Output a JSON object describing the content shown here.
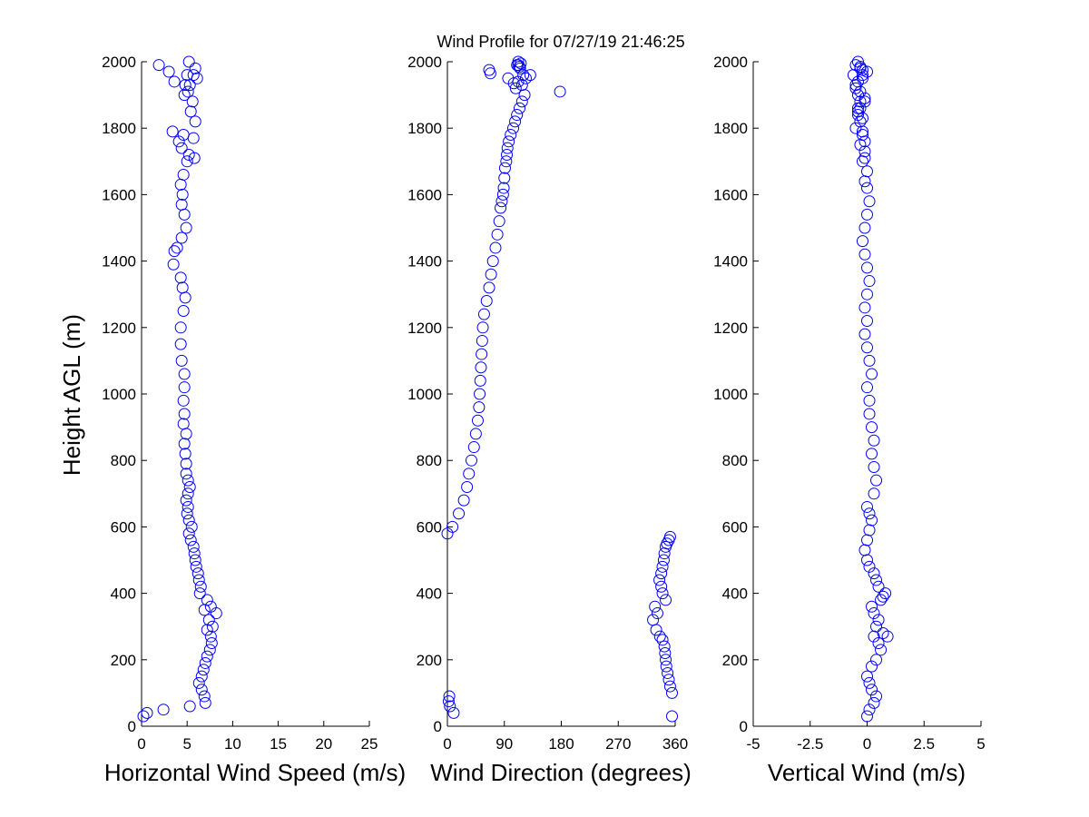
{
  "title": "Wind Profile for  07/27/19 21:46:25",
  "colors": {
    "marker": "#0000ff",
    "axis": "#000000",
    "background": "#ffffff"
  },
  "chart_data": [
    {
      "type": "scatter",
      "xlabel": "Horizontal Wind Speed (m/s)",
      "ylabel": "Height AGL (m)",
      "xlim": [
        0,
        25
      ],
      "ylim": [
        0,
        2000
      ],
      "xticks": [
        "0",
        "5",
        "10",
        "15",
        "20",
        "25"
      ],
      "yticks": [
        "0",
        "200",
        "400",
        "600",
        "800",
        "1000",
        "1200",
        "1400",
        "1600",
        "1800",
        "2000"
      ],
      "grid": false,
      "x": [
        0.2,
        0.6,
        2.4,
        5.3,
        7.0,
        6.9,
        6.6,
        6.3,
        6.6,
        6.8,
        7.0,
        7.2,
        7.5,
        7.7,
        7.6,
        7.8,
        8.2,
        7.4,
        7.2,
        6.9,
        7.6,
        7.2,
        6.4,
        6.5,
        6.3,
        6.2,
        6.0,
        5.9,
        5.8,
        5.7,
        5.4,
        5.2,
        5.5,
        5.2,
        5.0,
        5.1,
        4.9,
        5.1,
        5.3,
        5.1,
        4.9,
        4.9,
        4.8,
        4.7,
        4.9,
        4.6,
        4.7,
        4.6,
        4.7,
        4.7,
        4.4,
        4.3,
        4.3,
        4.6,
        4.8,
        4.5,
        4.3,
        3.5,
        3.6,
        3.9,
        4.4,
        4.9,
        4.7,
        4.4,
        4.5,
        4.3,
        4.6,
        5.0,
        5.2,
        4.4,
        4.1,
        5.8,
        5.7,
        5.9,
        5.4,
        3.4,
        4.6,
        5.6,
        5.1,
        5.3,
        4.7,
        6.1,
        5.7,
        3.0,
        3.6,
        4.8,
        5.0,
        5.9,
        1.9,
        5.2
      ],
      "y": [
        30,
        40,
        50,
        60,
        70,
        90,
        110,
        130,
        150,
        170,
        190,
        210,
        230,
        250,
        270,
        300,
        340,
        320,
        290,
        350,
        360,
        380,
        400,
        420,
        440,
        460,
        480,
        500,
        520,
        540,
        560,
        580,
        600,
        620,
        640,
        660,
        680,
        700,
        720,
        740,
        760,
        790,
        820,
        850,
        880,
        910,
        940,
        980,
        1020,
        1060,
        1100,
        1150,
        1200,
        1250,
        1290,
        1320,
        1350,
        1390,
        1430,
        1440,
        1470,
        1500,
        1540,
        1570,
        1600,
        1630,
        1660,
        1700,
        1720,
        1740,
        1760,
        1710,
        1770,
        1820,
        1850,
        1790,
        1780,
        1880,
        1910,
        1930,
        1900,
        1950,
        1960,
        1970,
        1940,
        1930,
        1960,
        1980,
        1990,
        2000
      ]
    },
    {
      "type": "scatter",
      "xlabel": "Wind Direction (degrees)",
      "ylabel": "",
      "xlim": [
        0,
        360
      ],
      "ylim": [
        0,
        2000
      ],
      "xticks": [
        "0",
        "90",
        "180",
        "270",
        "360"
      ],
      "yticks": [
        "0",
        "200",
        "400",
        "600",
        "800",
        "1000",
        "1200",
        "1400",
        "1600",
        "1800",
        "2000"
      ],
      "grid": false,
      "x": [
        355,
        10,
        4,
        2,
        3,
        355,
        352,
        350,
        348,
        346,
        345,
        344,
        343,
        340,
        336,
        330,
        325,
        332,
        328,
        345,
        340,
        338,
        335,
        338,
        340,
        342,
        343,
        345,
        347,
        350,
        352,
        0,
        8,
        18,
        26,
        31,
        34,
        38,
        42,
        45,
        48,
        50,
        51,
        52,
        53,
        54,
        55,
        56,
        58,
        62,
        66,
        69,
        72,
        76,
        79,
        82,
        84,
        86,
        88,
        89,
        90,
        91,
        93,
        94,
        95,
        97,
        100,
        104,
        107,
        110,
        114,
        118,
        122,
        108,
        112,
        120,
        124,
        131,
        115,
        112,
        110,
        112,
        114,
        116,
        66,
        68,
        96,
        105,
        178,
        118
      ],
      "y": [
        30,
        40,
        60,
        75,
        90,
        100,
        120,
        140,
        160,
        180,
        200,
        220,
        240,
        260,
        270,
        290,
        320,
        340,
        360,
        380,
        400,
        420,
        440,
        460,
        480,
        500,
        520,
        540,
        550,
        560,
        570,
        580,
        600,
        640,
        680,
        720,
        760,
        800,
        840,
        880,
        920,
        960,
        1000,
        1040,
        1080,
        1120,
        1160,
        1200,
        1240,
        1280,
        1320,
        1360,
        1400,
        1440,
        1480,
        1520,
        1560,
        1580,
        1600,
        1620,
        1650,
        1680,
        1700,
        1720,
        1740,
        1760,
        1780,
        1800,
        1820,
        1840,
        1860,
        1880,
        1900,
        1920,
        1940,
        1960,
        1950,
        1960,
        1980,
        1990,
        1990,
        2000,
        1985,
        1995,
        1975,
        1965,
        1950,
        1935,
        1910,
        1930
      ]
    },
    {
      "type": "scatter",
      "xlabel": "Vertical Wind (m/s)",
      "ylabel": "",
      "xlim": [
        -5,
        5
      ],
      "ylim": [
        0,
        2000
      ],
      "xticks": [
        "-5",
        "-2.5",
        "0",
        "2.5",
        "5"
      ],
      "yticks": [
        "0",
        "200",
        "400",
        "600",
        "800",
        "1000",
        "1200",
        "1400",
        "1600",
        "1800",
        "2000"
      ],
      "grid": false,
      "x": [
        0.0,
        0.1,
        0.3,
        0.4,
        0.2,
        0.1,
        0.0,
        0.2,
        0.4,
        0.6,
        0.5,
        0.3,
        0.7,
        0.4,
        0.9,
        0.5,
        0.3,
        0.2,
        0.6,
        0.8,
        0.7,
        0.5,
        0.4,
        0.3,
        0.1,
        0.0,
        -0.1,
        0.0,
        0.1,
        0.2,
        0.1,
        0.0,
        0.3,
        0.4,
        0.3,
        0.2,
        0.3,
        0.2,
        0.1,
        0.1,
        0.0,
        0.2,
        0.1,
        0.0,
        -0.1,
        0.0,
        -0.1,
        0.0,
        0.1,
        0.0,
        -0.1,
        -0.2,
        -0.1,
        0.0,
        0.1,
        0.0,
        -0.1,
        0.0,
        -0.2,
        -0.1,
        -0.1,
        -0.2,
        -0.3,
        -0.4,
        -0.3,
        -0.4,
        -0.5,
        -0.4,
        -0.2,
        -0.3,
        -0.1,
        -0.5,
        -0.2,
        0.0,
        -0.2,
        -0.1,
        -0.3,
        -0.4,
        -0.2,
        -0.3,
        -0.5,
        -0.3,
        -0.2,
        -0.4,
        -0.6,
        -0.5,
        -0.3,
        -0.1,
        -0.4
      ],
      "y": [
        30,
        50,
        70,
        90,
        110,
        130,
        150,
        180,
        200,
        230,
        250,
        270,
        280,
        300,
        270,
        320,
        340,
        360,
        380,
        400,
        390,
        420,
        440,
        460,
        480,
        500,
        530,
        560,
        590,
        620,
        640,
        660,
        700,
        740,
        780,
        820,
        860,
        900,
        940,
        980,
        1020,
        1060,
        1100,
        1140,
        1180,
        1220,
        1260,
        1300,
        1340,
        1380,
        1420,
        1460,
        1500,
        1540,
        1580,
        1620,
        1640,
        1670,
        1700,
        1730,
        1760,
        1790,
        1820,
        1850,
        1880,
        1900,
        1920,
        1940,
        1960,
        1980,
        1710,
        1800,
        1830,
        1970,
        1950,
        1890,
        1860,
        1840,
        1780,
        1750,
        1990,
        1985,
        1975,
        2000,
        1960,
        1930,
        1910,
        1880,
        1860
      ]
    }
  ]
}
